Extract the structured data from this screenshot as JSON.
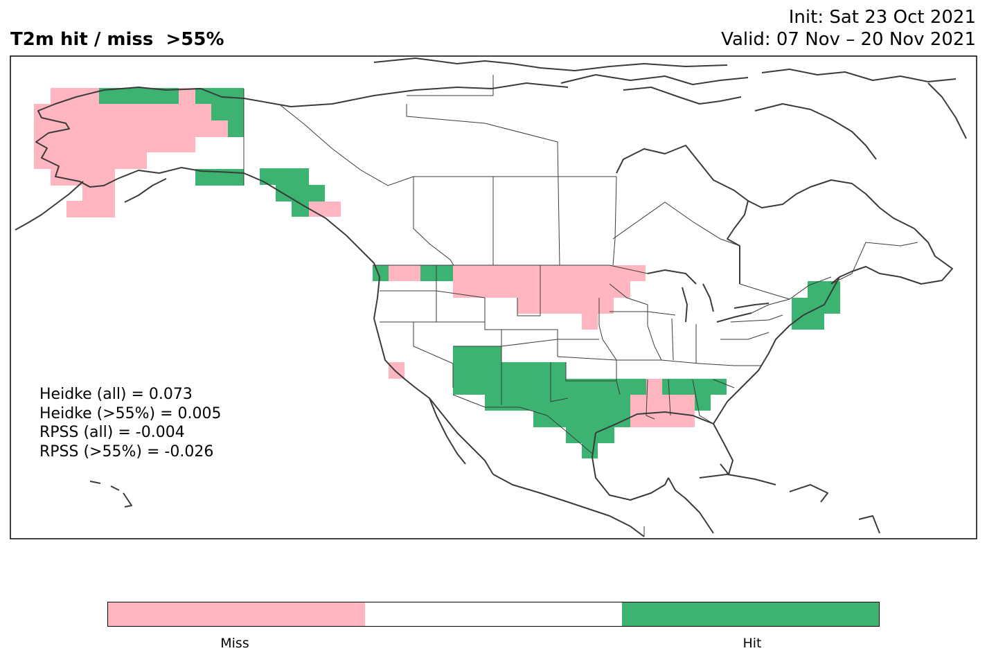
{
  "title": "T2m hit / miss  >55%",
  "init": "Init: Sat 23 Oct 2021",
  "valid": "Valid: 07 Nov – 20 Nov 2021",
  "stats": [
    "Heidke (all) = 0.073",
    "Heidke (>55%) = 0.005",
    "RPSS (all) = -0.004",
    "RPSS (>55%) = -0.026"
  ],
  "colorbar": {
    "segments": [
      {
        "color": "#ffb6c1"
      },
      {
        "color": "#ffffff"
      },
      {
        "color": "#3cb371"
      }
    ],
    "labels": [
      "Miss",
      "Hit"
    ]
  },
  "colors": {
    "miss": "#ffb6c1",
    "hit": "#3cb371",
    "coast": "#3a3a3a",
    "border": "#3a3a3a"
  }
}
